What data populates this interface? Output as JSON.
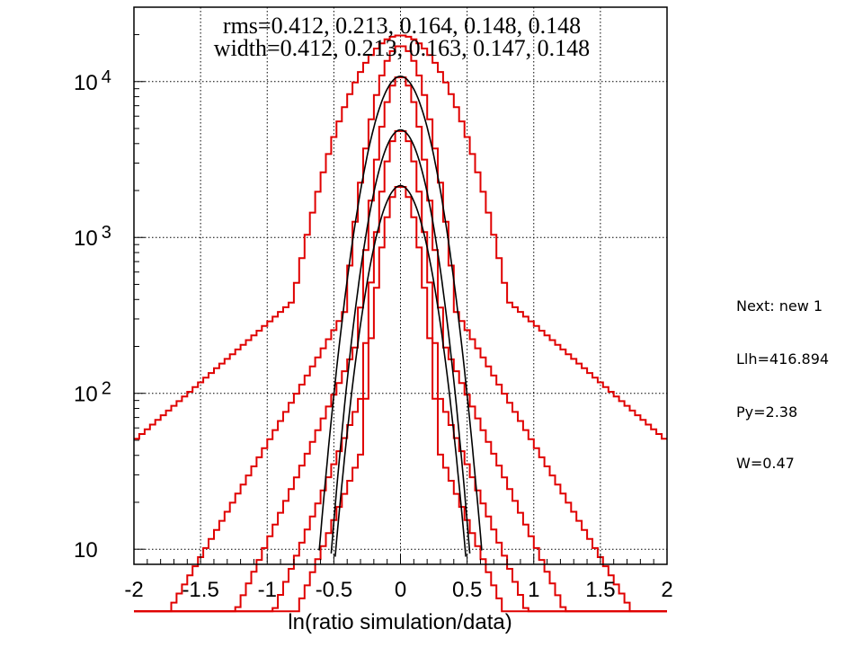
{
  "chart_data": {
    "type": "line",
    "subtype": "step-histogram",
    "scale": {
      "y": "log"
    },
    "xlim": [
      -2,
      2
    ],
    "ylim": [
      8,
      30000
    ],
    "xlabel": "ln(ratio simulation/data)",
    "ylabel": "",
    "grid": true,
    "x_ticks": [
      "-2",
      "-1.5",
      "-1",
      "-0.5",
      "0",
      "0.5",
      "1",
      "1.5",
      "2"
    ],
    "y_ticks": [
      {
        "value": 10,
        "base": "10",
        "exp": ""
      },
      {
        "value": 100,
        "base": "10",
        "exp": "2"
      },
      {
        "value": 1000,
        "base": "10",
        "exp": "3"
      },
      {
        "value": 10000,
        "base": "10",
        "exp": "4"
      }
    ],
    "annotations": [
      "rms=0.412, 0.213, 0.164, 0.148, 0.148",
      "width=0.412, 0.213, 0.163, 0.147, 0.148"
    ],
    "colors": {
      "histogram": "#e00000",
      "fit": "#000000",
      "grid": "#000000"
    },
    "series": [
      {
        "kind": "histogram",
        "peak": 19800,
        "rms": 0.412
      },
      {
        "kind": "histogram",
        "peak": 17000,
        "rms": 0.213
      },
      {
        "kind": "histogram",
        "peak": 10800,
        "rms": 0.164
      },
      {
        "kind": "histogram",
        "peak": 4900,
        "rms": 0.148
      },
      {
        "kind": "histogram",
        "peak": 2150,
        "rms": 0.148
      },
      {
        "kind": "fit",
        "peak": 10800,
        "width": 0.163
      },
      {
        "kind": "fit",
        "peak": 4900,
        "width": 0.147
      },
      {
        "kind": "fit",
        "peak": 2150,
        "width": 0.148
      }
    ]
  },
  "side_panel": {
    "next": "Next: new 1",
    "llh": "Llh=416.894",
    "py": "Py=2.38",
    "w": "W=0.47"
  }
}
